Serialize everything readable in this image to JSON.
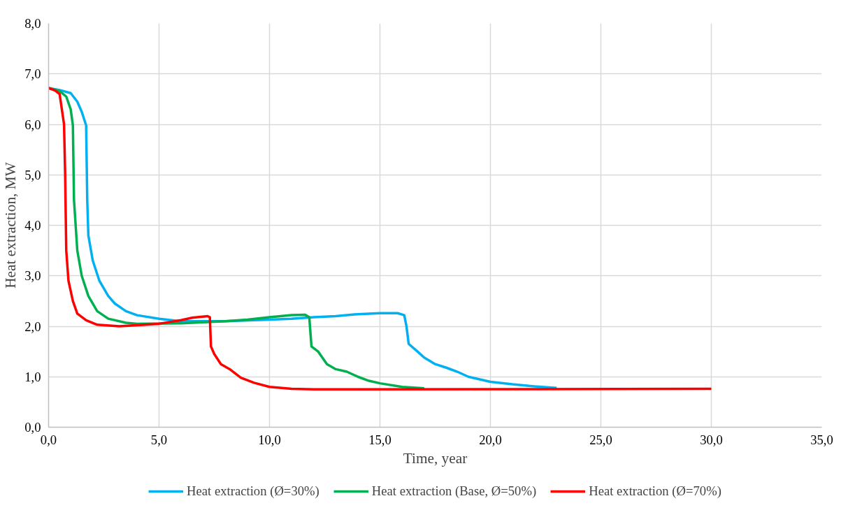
{
  "chart_data": {
    "type": "line",
    "xlabel": "Time, year",
    "ylabel": "Heat extraction, MW",
    "xlim": [
      0,
      35
    ],
    "ylim": [
      0,
      8
    ],
    "xticks": [
      {
        "value": 0,
        "label": "0,0"
      },
      {
        "value": 5,
        "label": "5,0"
      },
      {
        "value": 10,
        "label": "10,0"
      },
      {
        "value": 15,
        "label": "15,0"
      },
      {
        "value": 20,
        "label": "20,0"
      },
      {
        "value": 25,
        "label": "25,0"
      },
      {
        "value": 30,
        "label": "30,0"
      },
      {
        "value": 35,
        "label": "35,0"
      }
    ],
    "yticks": [
      {
        "value": 0,
        "label": "0,0"
      },
      {
        "value": 1,
        "label": "1,0"
      },
      {
        "value": 2,
        "label": "2,0"
      },
      {
        "value": 3,
        "label": "3,0"
      },
      {
        "value": 4,
        "label": "4,0"
      },
      {
        "value": 5,
        "label": "5,0"
      },
      {
        "value": 6,
        "label": "6,0"
      },
      {
        "value": 7,
        "label": "7,0"
      },
      {
        "value": 8,
        "label": "8,0"
      }
    ],
    "grid": true,
    "legend": "bottom",
    "marker": "none",
    "line_style": "solid",
    "series": [
      {
        "name": "Heat extraction (Ø=30%)",
        "color": "#00b0f0",
        "x": [
          0,
          0.5,
          1.0,
          1.3,
          1.5,
          1.7,
          1.75,
          1.8,
          2.0,
          2.3,
          2.7,
          3.0,
          3.5,
          4,
          5,
          6,
          8,
          10,
          11,
          12,
          13,
          14,
          15,
          15.8,
          16.1,
          16.2,
          16.3,
          16.7,
          17,
          17.5,
          18,
          18.5,
          19,
          20,
          21,
          22,
          23
        ],
        "values": [
          6.72,
          6.68,
          6.62,
          6.45,
          6.25,
          5.98,
          4.5,
          3.8,
          3.3,
          2.9,
          2.6,
          2.45,
          2.3,
          2.22,
          2.15,
          2.1,
          2.1,
          2.13,
          2.15,
          2.18,
          2.2,
          2.24,
          2.26,
          2.26,
          2.22,
          2.0,
          1.65,
          1.5,
          1.38,
          1.25,
          1.18,
          1.1,
          1.0,
          0.9,
          0.85,
          0.81,
          0.78
        ]
      },
      {
        "name": "Heat extraction (Base, Ø=50%)",
        "color": "#00b050",
        "x": [
          0,
          0.5,
          0.8,
          1.0,
          1.1,
          1.15,
          1.3,
          1.5,
          1.8,
          2.2,
          2.7,
          3.5,
          4,
          6,
          8,
          9,
          10,
          11,
          11.6,
          11.8,
          11.9,
          12.2,
          12.6,
          13,
          13.5,
          14,
          14.5,
          15,
          16,
          17
        ],
        "values": [
          6.72,
          6.66,
          6.55,
          6.3,
          5.98,
          4.5,
          3.5,
          3.0,
          2.6,
          2.3,
          2.15,
          2.07,
          2.05,
          2.06,
          2.1,
          2.13,
          2.18,
          2.22,
          2.23,
          2.18,
          1.6,
          1.5,
          1.25,
          1.15,
          1.1,
          1.0,
          0.92,
          0.87,
          0.8,
          0.77
        ]
      },
      {
        "name": "Heat extraction (Ø=70%)",
        "color": "#ff0000",
        "x": [
          0,
          0.3,
          0.5,
          0.7,
          0.75,
          0.8,
          0.9,
          1.1,
          1.3,
          1.7,
          2.2,
          3.2,
          4,
          5,
          6,
          6.5,
          7.2,
          7.3,
          7.35,
          7.5,
          7.8,
          8.2,
          8.7,
          9.3,
          10,
          11,
          12,
          30
        ],
        "values": [
          6.72,
          6.67,
          6.6,
          6.0,
          5.0,
          3.5,
          2.9,
          2.5,
          2.25,
          2.12,
          2.03,
          2.0,
          2.02,
          2.05,
          2.12,
          2.17,
          2.2,
          2.18,
          1.6,
          1.45,
          1.25,
          1.15,
          0.98,
          0.88,
          0.8,
          0.76,
          0.75,
          0.76
        ]
      }
    ]
  }
}
